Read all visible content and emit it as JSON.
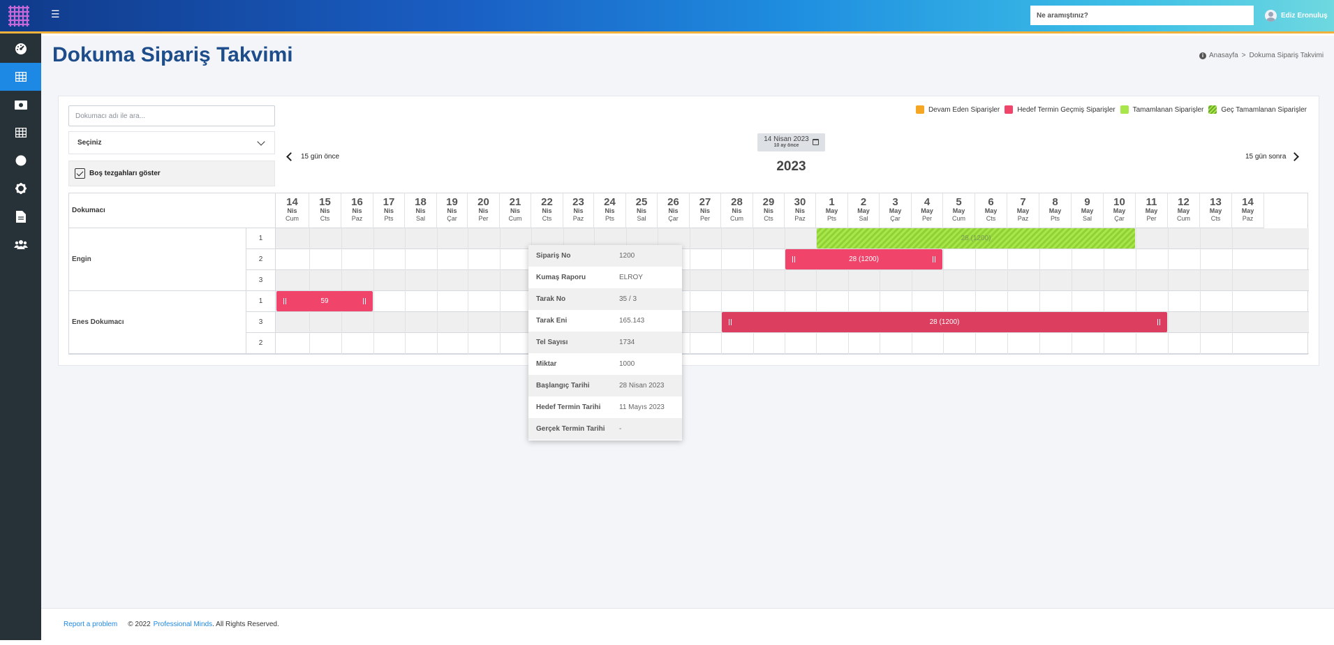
{
  "header": {
    "search_placeholder": "Ne aramıştınız?",
    "user_name": "Ediz Eronuluş",
    "colors": {
      "accent": "#1e88e5",
      "brand_bar": "#f2b13a"
    }
  },
  "sidebar": {
    "items": [
      {
        "icon": "dashboard-icon"
      },
      {
        "icon": "table-icon",
        "active": true
      },
      {
        "icon": "money-icon"
      },
      {
        "icon": "grid-icon"
      },
      {
        "icon": "circle-icon"
      },
      {
        "icon": "gear-icon"
      },
      {
        "icon": "file-icon"
      },
      {
        "icon": "users-icon"
      }
    ]
  },
  "page": {
    "title": "Dokuma Sipariş Takvimi",
    "breadcrumb_home": "Anasayfa",
    "breadcrumb_sep": ">",
    "breadcrumb_current": "Dokuma Sipariş Takvimi"
  },
  "filters": {
    "weaver_search_placeholder": "Dokumacı adı ile ara...",
    "select_value": "Seçiniz",
    "show_empty_label": "Boş tezgahları göster"
  },
  "legend": [
    {
      "label": "Devam Eden Siparişler",
      "color": "#f5a623"
    },
    {
      "label": "Hedef Termin Geçmiş Siparişler",
      "color": "#f0446b"
    },
    {
      "label": "Tamamlanan Siparişler",
      "color": "#a8e64a"
    },
    {
      "label": "Geç Tamamlanan Siparişler",
      "color": "#8fd136"
    }
  ],
  "calendar": {
    "date_label": "14 Nisan 2023",
    "date_relative": "10 ay önce",
    "prev_label": "15 gün önce",
    "next_label": "15 gün sonra",
    "year": "2023",
    "weaver_header": "Dokumacı",
    "days": [
      {
        "d": "14",
        "m": "Nis",
        "w": "Cum"
      },
      {
        "d": "15",
        "m": "Nis",
        "w": "Cts"
      },
      {
        "d": "16",
        "m": "Nis",
        "w": "Paz"
      },
      {
        "d": "17",
        "m": "Nis",
        "w": "Pts"
      },
      {
        "d": "18",
        "m": "Nis",
        "w": "Sal"
      },
      {
        "d": "19",
        "m": "Nis",
        "w": "Çar"
      },
      {
        "d": "20",
        "m": "Nis",
        "w": "Per"
      },
      {
        "d": "21",
        "m": "Nis",
        "w": "Cum"
      },
      {
        "d": "22",
        "m": "Nis",
        "w": "Cts"
      },
      {
        "d": "23",
        "m": "Nis",
        "w": "Paz"
      },
      {
        "d": "24",
        "m": "Nis",
        "w": "Pts"
      },
      {
        "d": "25",
        "m": "Nis",
        "w": "Sal"
      },
      {
        "d": "26",
        "m": "Nis",
        "w": "Çar"
      },
      {
        "d": "27",
        "m": "Nis",
        "w": "Per"
      },
      {
        "d": "28",
        "m": "Nis",
        "w": "Cum"
      },
      {
        "d": "29",
        "m": "Nis",
        "w": "Cts"
      },
      {
        "d": "30",
        "m": "Nis",
        "w": "Paz"
      },
      {
        "d": "1",
        "m": "May",
        "w": "Pts"
      },
      {
        "d": "2",
        "m": "May",
        "w": "Sal"
      },
      {
        "d": "3",
        "m": "May",
        "w": "Çar"
      },
      {
        "d": "4",
        "m": "May",
        "w": "Per"
      },
      {
        "d": "5",
        "m": "May",
        "w": "Cum"
      },
      {
        "d": "6",
        "m": "May",
        "w": "Cts"
      },
      {
        "d": "7",
        "m": "May",
        "w": "Paz"
      },
      {
        "d": "8",
        "m": "May",
        "w": "Pts"
      },
      {
        "d": "9",
        "m": "May",
        "w": "Sal"
      },
      {
        "d": "10",
        "m": "May",
        "w": "Çar"
      },
      {
        "d": "11",
        "m": "May",
        "w": "Per"
      },
      {
        "d": "12",
        "m": "May",
        "w": "Cum"
      },
      {
        "d": "13",
        "m": "May",
        "w": "Cts"
      },
      {
        "d": "14",
        "m": "May",
        "w": "Paz"
      }
    ],
    "weavers": [
      {
        "name": "Engin",
        "looms": [
          "1",
          "2",
          "3"
        ]
      },
      {
        "name": "Enes Dokumacı",
        "looms": [
          "1",
          "3",
          "2"
        ]
      }
    ],
    "orders": [
      {
        "label": "28 (1200)",
        "row": 0,
        "start": 17,
        "end": 26,
        "status": "late-completed",
        "color": "#a8e64a"
      },
      {
        "label": "28 (1200)",
        "row": 1,
        "start": 16,
        "end": 20,
        "status": "overdue",
        "color": "#f0446b"
      },
      {
        "label": "59",
        "row": 3,
        "start": 0,
        "end": 2,
        "status": "overdue",
        "color": "#f0446b"
      },
      {
        "label": "28 (1200)",
        "row": 4,
        "start": 14,
        "end": 27,
        "status": "overdue-active",
        "color": "#dc3e5f"
      }
    ]
  },
  "tooltip": [
    {
      "k": "Sipariş No",
      "v": "1200"
    },
    {
      "k": "Kumaş Raporu",
      "v": "ELROY"
    },
    {
      "k": "Tarak No",
      "v": "35 / 3"
    },
    {
      "k": "Tarak Eni",
      "v": "165.143"
    },
    {
      "k": "Tel Sayısı",
      "v": "1734"
    },
    {
      "k": "Miktar",
      "v": "1000"
    },
    {
      "k": "Başlangıç Tarihi",
      "v": "28 Nisan 2023"
    },
    {
      "k": "Hedef Termin Tarihi",
      "v": "11 Mayıs 2023"
    },
    {
      "k": "Gerçek Termin Tarihi",
      "v": "-"
    }
  ],
  "footer": {
    "report": "Report a problem",
    "copyright": "© 2022",
    "company": "Professional Minds",
    "rights": ". All Rights Reserved."
  }
}
